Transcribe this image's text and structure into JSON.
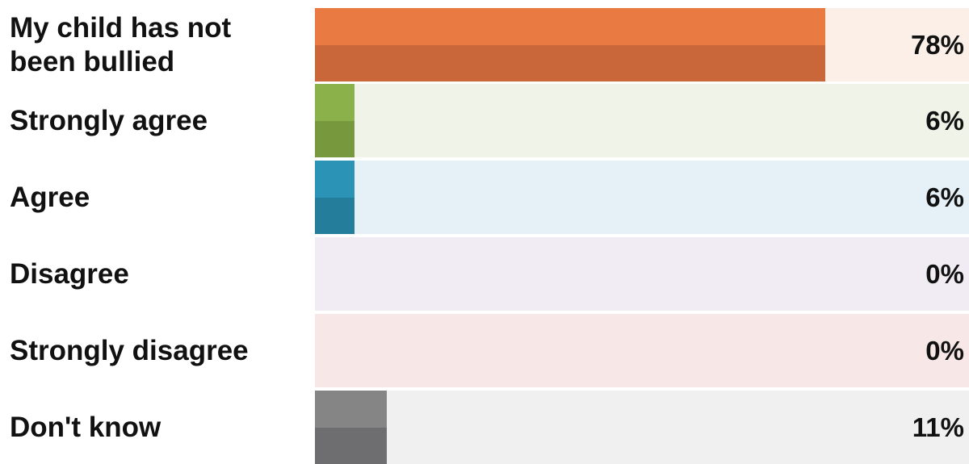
{
  "chart_data": {
    "type": "bar",
    "orientation": "horizontal",
    "categories": [
      "My child has not\nbeen bullied",
      "Strongly agree",
      "Agree",
      "Disagree",
      "Strongly disagree",
      "Don't know"
    ],
    "values": [
      78,
      6,
      6,
      0,
      0,
      11
    ],
    "value_labels": [
      "78%",
      "6%",
      "6%",
      "0%",
      "0%",
      "11%"
    ],
    "xlim": [
      0,
      100
    ],
    "unit": "%",
    "title": "",
    "xlabel": "",
    "ylabel": "",
    "grid": false,
    "legend": "none",
    "colors": [
      {
        "fill_top": "#E87A42",
        "fill_bottom": "#C9663A",
        "track": "#FBEFE8"
      },
      {
        "fill_top": "#8BB24A",
        "fill_bottom": "#78983E",
        "track": "#EFF3E8"
      },
      {
        "fill_top": "#2A93B6",
        "fill_bottom": "#257D9C",
        "track": "#E5F1F7"
      },
      {
        "fill_top": "#9A7BB0",
        "fill_bottom": "#846A98",
        "track": "#F1ECF3"
      },
      {
        "fill_top": "#D86A6A",
        "fill_bottom": "#BC5A5A",
        "track": "#F8E7E7"
      },
      {
        "fill_top": "#858585",
        "fill_bottom": "#6E6E70",
        "track": "#F0F0F0"
      }
    ]
  }
}
